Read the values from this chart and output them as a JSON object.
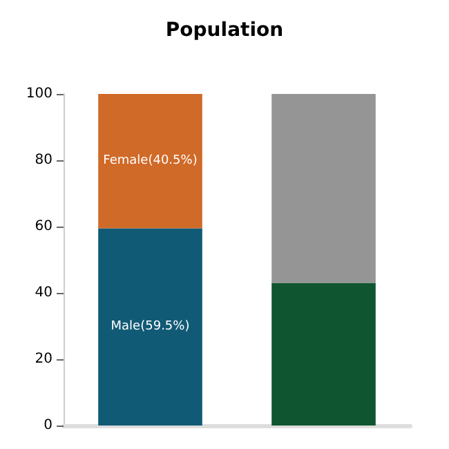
{
  "chart_data": {
    "type": "bar",
    "title": "Population",
    "stacked": true,
    "categories": [
      null,
      null
    ],
    "series": [
      {
        "colors": [
          "#115a75",
          "#0f5530"
        ],
        "values": [
          59.5,
          43
        ],
        "value_labels": [
          "Male(59.5%)",
          null
        ]
      },
      {
        "colors": [
          "#d06a28",
          "#959595"
        ],
        "values": [
          40.5,
          57
        ],
        "value_labels": [
          "Female(40.5%)",
          null
        ]
      }
    ],
    "ylim": [
      0,
      100
    ],
    "yticks": [
      0,
      20,
      40,
      60,
      80,
      100
    ],
    "grid": false
  }
}
